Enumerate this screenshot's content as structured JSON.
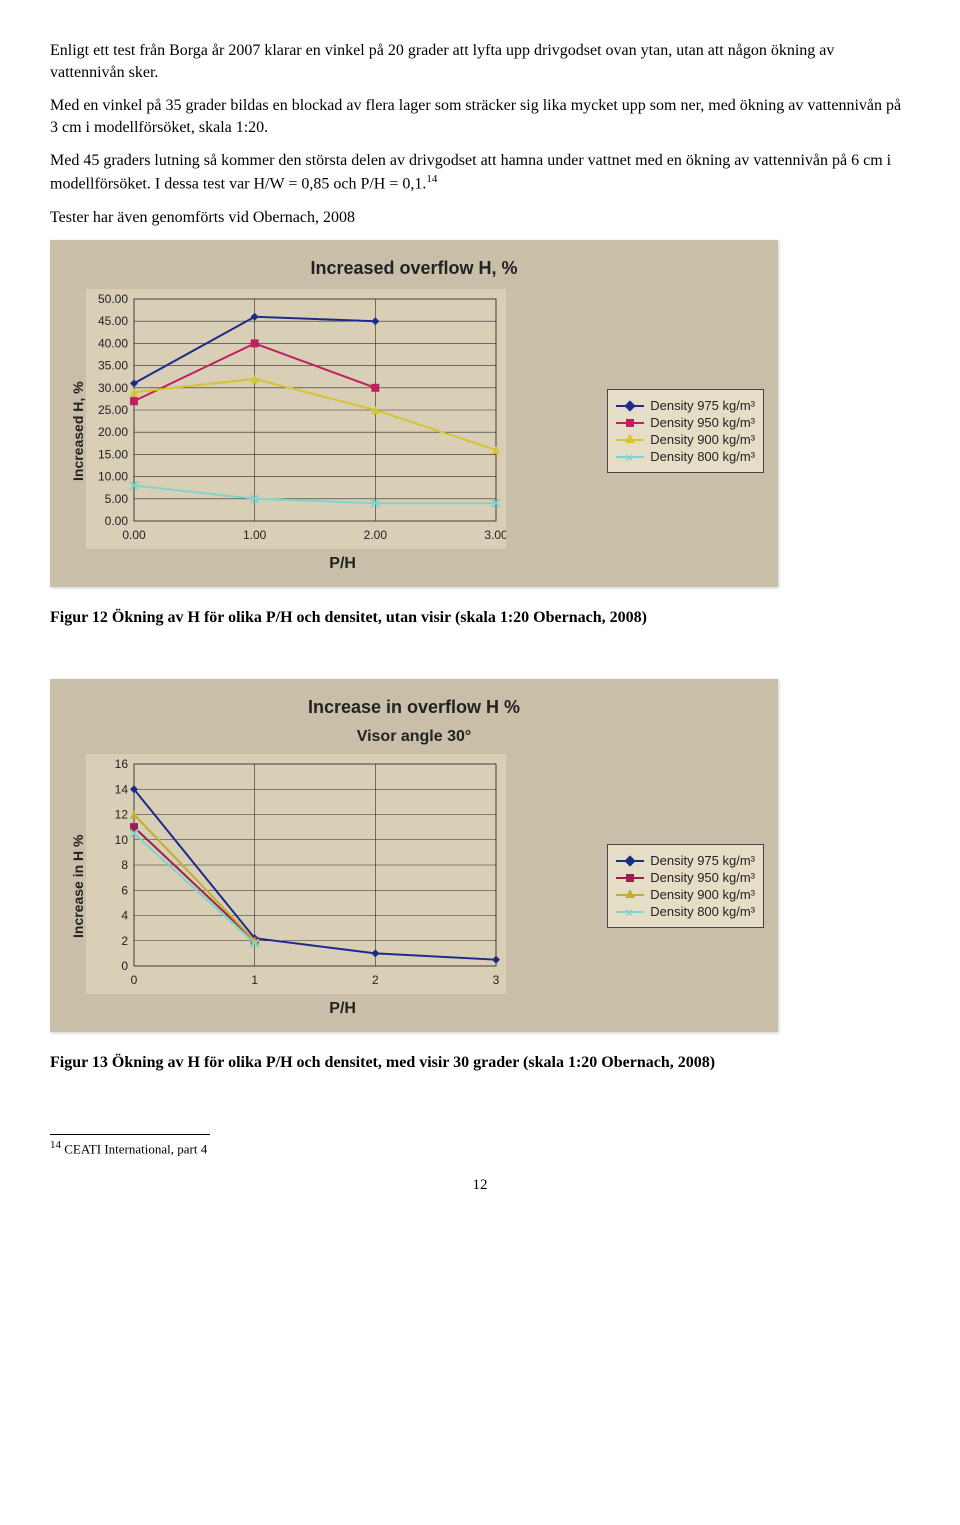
{
  "para1": "Enligt ett test från Borga år 2007 klarar en vinkel på 20 grader att lyfta upp drivgodset ovan ytan, utan att någon ökning av vattennivån sker.",
  "para2": "Med en vinkel på 35 grader bildas en blockad av flera lager som sträcker sig lika mycket upp som ner, med ökning av vattennivån på 3 cm i modellförsöket, skala 1:20.",
  "para3_a": "Med 45 graders lutning så kommer den största delen av drivgodset att hamna under vattnet med en ökning av vattennivån på 6 cm i modellförsöket. I dessa test var H/W = 0,85 och P/H = 0,1.",
  "para3_sup": "14",
  "para4": "Tester har även genomförts vid Obernach, 2008",
  "chart1": {
    "title": "Increased overflow H, %",
    "ylabel": "Increased H, %",
    "xlabel": "P/H",
    "yticks": [
      "0.00",
      "5.00",
      "10.00",
      "15.00",
      "20.00",
      "25.00",
      "30.00",
      "35.00",
      "40.00",
      "45.00",
      "50.00"
    ],
    "xticks": [
      "0.00",
      "1.00",
      "2.00",
      "3.00"
    ],
    "ylim": [
      0,
      50
    ],
    "xlim": [
      0,
      3
    ],
    "grid_color": "#2a2a2a",
    "plot_bg": "#d8cfb6",
    "panel_bg": "#c9bfa8",
    "series": [
      {
        "label": "Density 975 kg/m³",
        "color": "#1d2a8a",
        "marker": "diamond",
        "x": [
          0,
          1,
          2,
          3
        ],
        "y": [
          31,
          46,
          45,
          null
        ]
      },
      {
        "label": "Density 950 kg/m³",
        "color": "#c02060",
        "marker": "square",
        "x": [
          0,
          1,
          2
        ],
        "y": [
          27,
          40,
          30
        ]
      },
      {
        "label": "Density 900 kg/m³",
        "color": "#d6c430",
        "marker": "triangle",
        "x": [
          0,
          1,
          2,
          3
        ],
        "y": [
          29,
          32,
          25,
          16
        ]
      },
      {
        "label": "Density 800 kg/m³",
        "color": "#7fd4d0",
        "marker": "x",
        "x": [
          0,
          1,
          2,
          3
        ],
        "y": [
          8,
          5,
          4,
          4
        ]
      }
    ],
    "tick_font": 12
  },
  "caption1": "Figur 12 Ökning av H för olika P/H och densitet, utan visir (skala 1:20 Obernach, 2008)",
  "chart2": {
    "title": "Increase in overflow H %",
    "subtitle": "Visor angle 30°",
    "ylabel": "Increase in H %",
    "xlabel": "P/H",
    "yticks": [
      "0",
      "2",
      "4",
      "6",
      "8",
      "10",
      "12",
      "14",
      "16"
    ],
    "xticks": [
      "0",
      "1",
      "2",
      "3"
    ],
    "ylim": [
      0,
      16
    ],
    "xlim": [
      0,
      3
    ],
    "grid_color": "#2a2a2a",
    "plot_bg": "#d8cfb6",
    "panel_bg": "#c9bfa8",
    "series": [
      {
        "label": "Density 975 kg/m³",
        "color": "#1d2a8a",
        "marker": "diamond",
        "x": [
          0,
          1,
          2,
          3
        ],
        "y": [
          14,
          2.2,
          1,
          0.5
        ]
      },
      {
        "label": "Density 950 kg/m³",
        "color": "#9a2050",
        "marker": "square",
        "x": [
          0,
          1
        ],
        "y": [
          11,
          2
        ]
      },
      {
        "label": "Density 900 kg/m³",
        "color": "#c0b030",
        "marker": "triangle",
        "x": [
          0,
          1
        ],
        "y": [
          12,
          2
        ]
      },
      {
        "label": "Density 800 kg/m³",
        "color": "#7fd4d0",
        "marker": "x",
        "x": [
          0,
          1
        ],
        "y": [
          10.5,
          1.8
        ]
      }
    ],
    "tick_font": 12
  },
  "caption2": "Figur 13 Ökning av H för olika P/H och densitet, med visir 30 grader (skala 1:20 Obernach, 2008)",
  "footnote_num": "14",
  "footnote_text": " CEATI International, part 4",
  "pagenum": "12"
}
